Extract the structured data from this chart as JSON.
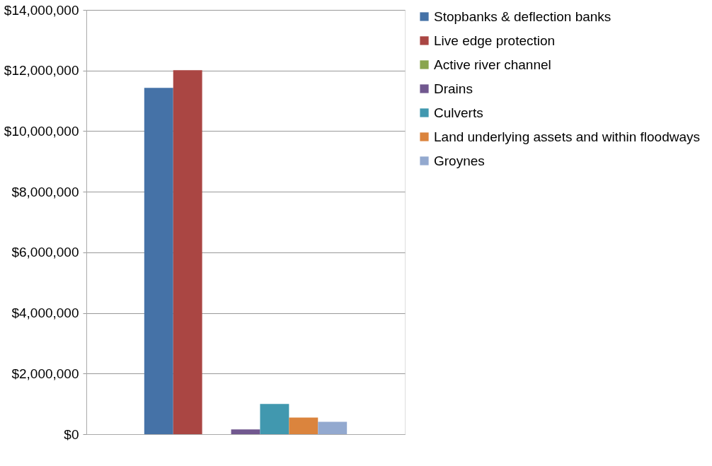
{
  "chart_data": {
    "type": "bar",
    "categories": [
      null
    ],
    "series": [
      {
        "name": "Stopbanks & deflection banks",
        "color": "#4572a7",
        "values": [
          11430000
        ]
      },
      {
        "name": "Live edge protection",
        "color": "#aa4643",
        "values": [
          12010000
        ]
      },
      {
        "name": "Active river channel",
        "color": "#89a54e",
        "values": [
          0
        ]
      },
      {
        "name": "Drains",
        "color": "#71588f",
        "values": [
          160000
        ]
      },
      {
        "name": "Culverts",
        "color": "#4198af",
        "values": [
          1000000
        ]
      },
      {
        "name": "Land underlying assets and within floodways",
        "color": "#db843d",
        "values": [
          550000
        ]
      },
      {
        "name": "Groynes",
        "color": "#93a9cf",
        "values": [
          410000
        ]
      }
    ],
    "ylim": [
      0,
      14000000
    ],
    "yticks": [
      {
        "value": 0,
        "label": "$0"
      },
      {
        "value": 2000000,
        "label": "$2,000,000"
      },
      {
        "value": 4000000,
        "label": "$4,000,000"
      },
      {
        "value": 6000000,
        "label": "$6,000,000"
      },
      {
        "value": 8000000,
        "label": "$8,000,000"
      },
      {
        "value": 10000000,
        "label": "$10,000,000"
      },
      {
        "value": 12000000,
        "label": "$12,000,000"
      },
      {
        "value": 14000000,
        "label": "$14,000,000"
      }
    ],
    "grid": "y",
    "legend": "right"
  }
}
